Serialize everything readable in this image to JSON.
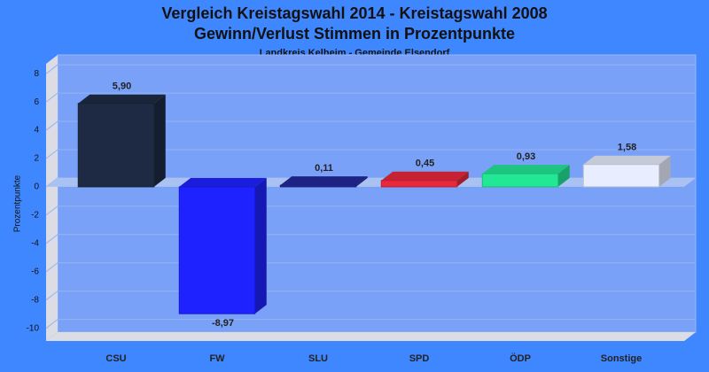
{
  "chart_data": {
    "type": "bar3d",
    "title": [
      "Vergleich Kreistagswahl 2014 - Kreistagswahl 2008",
      "Gewinn/Verlust Stimmen in Prozentpunkte"
    ],
    "subtitle": "Landkreis Kelheim - Gemeinde Elsendorf",
    "ylabel": "Prozentpunkte",
    "categories": [
      "CSU",
      "FW",
      "SLU",
      "SPD",
      "ÖDP",
      "Sonstige"
    ],
    "values": [
      5.9,
      -8.97,
      0.11,
      0.45,
      0.93,
      1.58
    ],
    "value_labels": [
      "5,90",
      "-8,97",
      "0,11",
      "0,45",
      "0,93",
      "1,58"
    ],
    "colors": [
      "#1e2a44",
      "#1e22ff",
      "#22289a",
      "#e8283c",
      "#22e896",
      "#e8eeff"
    ],
    "ylim": [
      -10.9,
      8.7
    ],
    "yticks": [
      -10,
      -8,
      -6,
      -4,
      -2,
      0,
      2,
      4,
      6,
      8
    ],
    "grid": true
  }
}
